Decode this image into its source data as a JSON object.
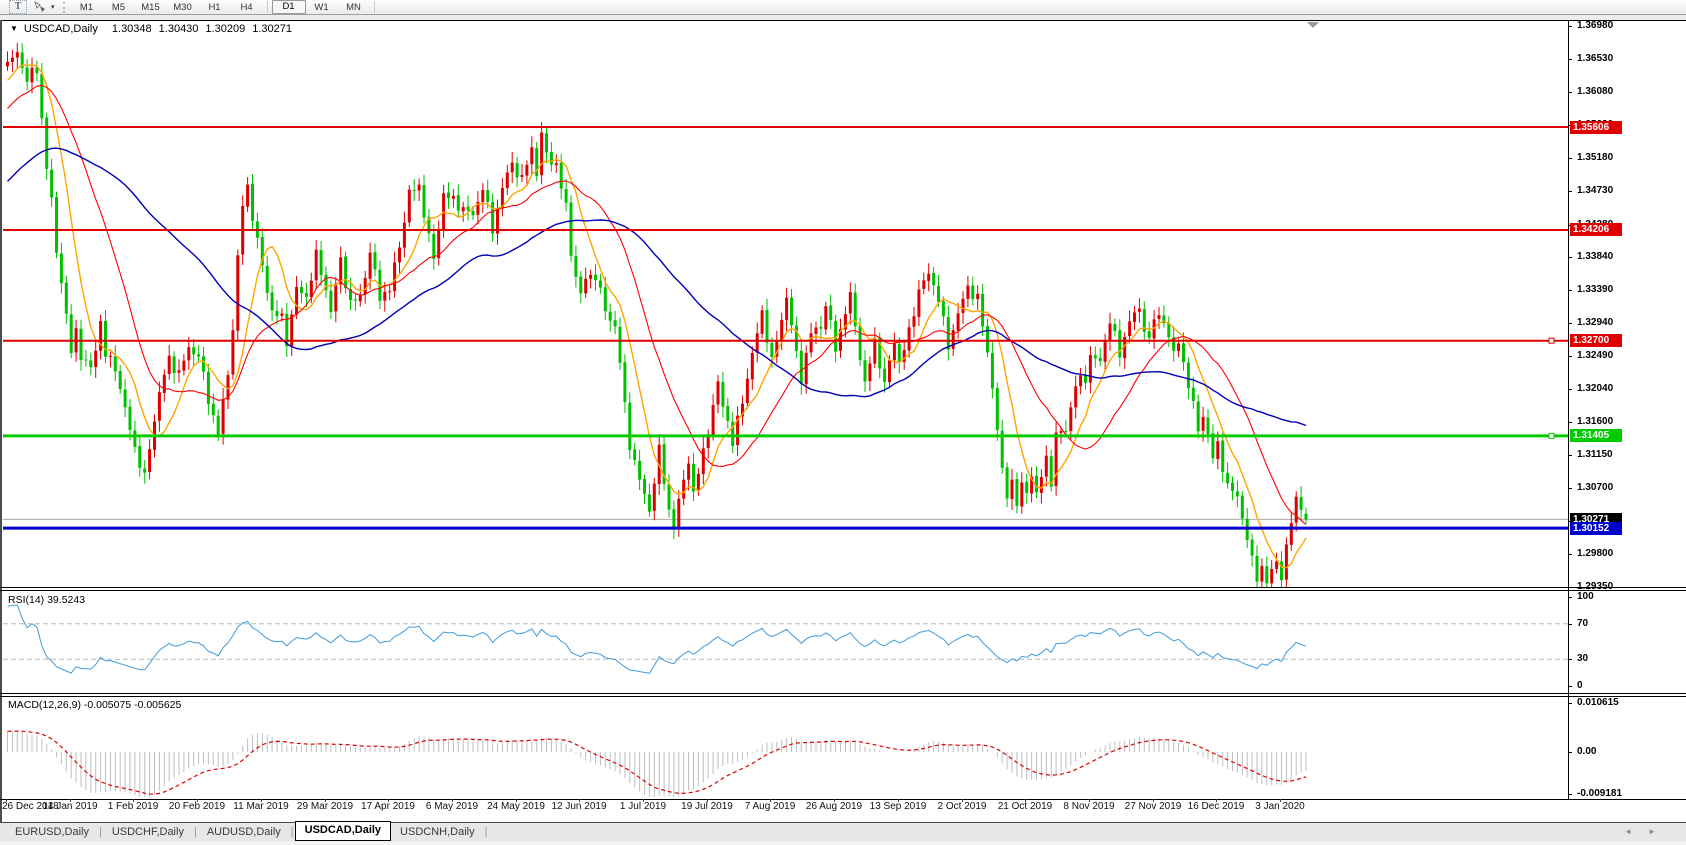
{
  "toolbar": {
    "text_tool_label": "T",
    "timeframes": [
      "M1",
      "M5",
      "M15",
      "M30",
      "H1",
      "H4",
      "D1",
      "W1",
      "MN"
    ],
    "active_timeframe": "D1"
  },
  "chart": {
    "symbol_title": "USDCAD,Daily",
    "ohlc": {
      "open": "1.30348",
      "high": "1.30430",
      "low": "1.30209",
      "close": "1.30271"
    },
    "price_axis_labels": [
      "1.36980",
      "1.36530",
      "1.36080",
      "1.35630",
      "1.35180",
      "1.34730",
      "1.34280",
      "1.33840",
      "1.33390",
      "1.32940",
      "1.32490",
      "1.32040",
      "1.31600",
      "1.31150",
      "1.30700",
      "1.30250",
      "1.29800",
      "1.29350"
    ],
    "current_price_badge": "1.30271"
  },
  "rsi_panel": {
    "label": "RSI(14) 39.5243",
    "axis_labels": [
      "100",
      "70",
      "30",
      "0"
    ]
  },
  "macd_panel": {
    "label": "MACD(12,26,9) -0.005075 -0.005625",
    "axis_labels": [
      "0.010615",
      "0.00",
      "-0.009181"
    ]
  },
  "date_axis": [
    "26 Dec 2018",
    "14 Jan 2019",
    "1 Feb 2019",
    "20 Feb 2019",
    "11 Mar 2019",
    "29 Mar 2019",
    "17 Apr 2019",
    "6 May 2019",
    "24 May 2019",
    "12 Jun 2019",
    "1 Jul 2019",
    "19 Jul 2019",
    "7 Aug 2019",
    "26 Aug 2019",
    "13 Sep 2019",
    "2 Oct 2019",
    "21 Oct 2019",
    "8 Nov 2019",
    "27 Nov 2019",
    "16 Dec 2019",
    "3 Jan 2020"
  ],
  "tab_bar": {
    "tabs": [
      "EURUSD,Daily",
      "USDCHF,Daily",
      "AUDUSD,Daily",
      "USDCAD,Daily",
      "USDCNH,Daily"
    ],
    "active_tab": "USDCAD,Daily",
    "scroll_left": "◄",
    "scroll_right": "►"
  },
  "colors": {
    "bull_candle": "#dd0000",
    "bear_candle": "#00c000",
    "ma_fast": "#ffa500",
    "ma_mid": "#ff0000",
    "ma_slow": "#0000b8",
    "rsi_line": "#3e9bdc",
    "macd_histogram": "#bfbfbf",
    "macd_signal": "#e00000",
    "current_price_line": "#aaaaaa",
    "current_price_badge_bg": "#000000"
  },
  "chart_data": {
    "type": "candlestick",
    "symbol": "USDCAD",
    "timeframe": "Daily",
    "bars": 266,
    "bars_per_date_label": 13,
    "ylim": [
      1.29337,
      1.37048
    ],
    "last_candle": {
      "open": 1.30348,
      "high": 1.3043,
      "low": 1.30209,
      "close": 1.30271
    },
    "current_price": 1.30271,
    "horizontal_levels": [
      {
        "value": 1.35606,
        "label": "1.35606",
        "color": "#e00000",
        "width": 2,
        "handle": false
      },
      {
        "value": 1.34206,
        "label": "1.34206",
        "color": "#e00000",
        "width": 2,
        "handle": false
      },
      {
        "value": 1.327,
        "label": "1.32700",
        "color": "#e00000",
        "width": 2,
        "handle": true
      },
      {
        "value": 1.31405,
        "label": "1.31405",
        "color": "#00cc00",
        "width": 3,
        "handle": true
      },
      {
        "value": 1.30152,
        "label": "1.30152",
        "color": "#0000cc",
        "width": 3,
        "handle": false
      }
    ],
    "moving_averages": [
      {
        "period": 8,
        "color": "#ffa500",
        "width": 1.4
      },
      {
        "period": 20,
        "color": "#ff0000",
        "width": 1.1
      },
      {
        "period": 50,
        "color": "#0000b8",
        "width": 1.4
      }
    ],
    "rsi": {
      "period": 14,
      "last_value": 39.5243,
      "levels": [
        70,
        30
      ],
      "range": [
        0,
        100
      ]
    },
    "macd": {
      "fast": 12,
      "slow": 26,
      "signal": 9,
      "last_macd": -0.005075,
      "last_signal": -0.005625,
      "axis_range": [
        -0.009181,
        0.010615
      ]
    },
    "close_waypoints": [
      [
        0,
        1.3645
      ],
      [
        2,
        1.3662
      ],
      [
        4,
        1.3625
      ],
      [
        6,
        1.364
      ],
      [
        7,
        1.3572
      ],
      [
        8,
        1.3505
      ],
      [
        9,
        1.346
      ],
      [
        10,
        1.339
      ],
      [
        11,
        1.3355
      ],
      [
        12,
        1.33
      ],
      [
        13,
        1.3255
      ],
      [
        14,
        1.3285
      ],
      [
        15,
        1.325
      ],
      [
        17,
        1.323
      ],
      [
        19,
        1.3295
      ],
      [
        20,
        1.325
      ],
      [
        22,
        1.3235
      ],
      [
        24,
        1.3175
      ],
      [
        26,
        1.3125
      ],
      [
        28,
        1.3082
      ],
      [
        29,
        1.3125
      ],
      [
        31,
        1.32
      ],
      [
        33,
        1.3245
      ],
      [
        35,
        1.3225
      ],
      [
        37,
        1.326
      ],
      [
        39,
        1.325
      ],
      [
        41,
        1.319
      ],
      [
        43,
        1.3145
      ],
      [
        45,
        1.3225
      ],
      [
        46,
        1.329
      ],
      [
        47,
        1.338
      ],
      [
        48,
        1.3455
      ],
      [
        49,
        1.348
      ],
      [
        50,
        1.344
      ],
      [
        52,
        1.337
      ],
      [
        54,
        1.331
      ],
      [
        56,
        1.33
      ],
      [
        57,
        1.327
      ],
      [
        59,
        1.334
      ],
      [
        61,
        1.333
      ],
      [
        63,
        1.3385
      ],
      [
        65,
        1.334
      ],
      [
        66,
        1.331
      ],
      [
        68,
        1.338
      ],
      [
        70,
        1.332
      ],
      [
        72,
        1.333
      ],
      [
        74,
        1.339
      ],
      [
        76,
        1.333
      ],
      [
        78,
        1.334
      ],
      [
        80,
        1.34
      ],
      [
        82,
        1.347
      ],
      [
        84,
        1.348
      ],
      [
        86,
        1.341
      ],
      [
        87,
        1.338
      ],
      [
        89,
        1.347
      ],
      [
        91,
        1.346
      ],
      [
        93,
        1.345
      ],
      [
        95,
        1.344
      ],
      [
        97,
        1.348
      ],
      [
        99,
        1.342
      ],
      [
        101,
        1.348
      ],
      [
        103,
        1.351
      ],
      [
        105,
        1.349
      ],
      [
        107,
        1.353
      ],
      [
        108,
        1.35
      ],
      [
        109,
        1.3552
      ],
      [
        110,
        1.352
      ],
      [
        112,
        1.351
      ],
      [
        114,
        1.345
      ],
      [
        115,
        1.339
      ],
      [
        117,
        1.333
      ],
      [
        118,
        1.3355
      ],
      [
        120,
        1.336
      ],
      [
        122,
        1.331
      ],
      [
        124,
        1.329
      ],
      [
        125,
        1.324
      ],
      [
        126,
        1.318
      ],
      [
        127,
        1.313
      ],
      [
        129,
        1.308
      ],
      [
        130,
        1.306
      ],
      [
        131,
        1.304
      ],
      [
        133,
        1.312
      ],
      [
        135,
        1.304
      ],
      [
        136,
        1.3018
      ],
      [
        137,
        1.305
      ],
      [
        139,
        1.311
      ],
      [
        140,
        1.306
      ],
      [
        142,
        1.312
      ],
      [
        144,
        1.318
      ],
      [
        145,
        1.321
      ],
      [
        147,
        1.316
      ],
      [
        148,
        1.313
      ],
      [
        150,
        1.319
      ],
      [
        152,
        1.325
      ],
      [
        154,
        1.331
      ],
      [
        156,
        1.324
      ],
      [
        158,
        1.33
      ],
      [
        159,
        1.333
      ],
      [
        161,
        1.325
      ],
      [
        162,
        1.322
      ],
      [
        164,
        1.328
      ],
      [
        166,
        1.329
      ],
      [
        167,
        1.332
      ],
      [
        169,
        1.326
      ],
      [
        171,
        1.331
      ],
      [
        172,
        1.333
      ],
      [
        174,
        1.325
      ],
      [
        175,
        1.321
      ],
      [
        177,
        1.327
      ],
      [
        179,
        1.321
      ],
      [
        181,
        1.327
      ],
      [
        182,
        1.324
      ],
      [
        184,
        1.328
      ],
      [
        186,
        1.334
      ],
      [
        188,
        1.336
      ],
      [
        190,
        1.333
      ],
      [
        192,
        1.326
      ],
      [
        194,
        1.331
      ],
      [
        196,
        1.334
      ],
      [
        198,
        1.333
      ],
      [
        199,
        1.329
      ],
      [
        200,
        1.325
      ],
      [
        201,
        1.321
      ],
      [
        202,
        1.315
      ],
      [
        203,
        1.309
      ],
      [
        204,
        1.306
      ],
      [
        205,
        1.308
      ],
      [
        206,
        1.305
      ],
      [
        207,
        1.307
      ],
      [
        208,
        1.3065
      ],
      [
        209,
        1.309
      ],
      [
        210,
        1.306
      ],
      [
        212,
        1.311
      ],
      [
        213,
        1.308
      ],
      [
        214,
        1.314
      ],
      [
        216,
        1.315
      ],
      [
        218,
        1.321
      ],
      [
        220,
        1.322
      ],
      [
        221,
        1.325
      ],
      [
        223,
        1.324
      ],
      [
        225,
        1.33
      ],
      [
        227,
        1.325
      ],
      [
        229,
        1.33
      ],
      [
        231,
        1.331
      ],
      [
        233,
        1.327
      ],
      [
        234,
        1.33
      ],
      [
        236,
        1.33
      ],
      [
        238,
        1.325
      ],
      [
        239,
        1.327
      ],
      [
        241,
        1.321
      ],
      [
        243,
        1.315
      ],
      [
        244,
        1.317
      ],
      [
        246,
        1.311
      ],
      [
        247,
        1.313
      ],
      [
        249,
        1.307
      ],
      [
        251,
        1.306
      ],
      [
        252,
        1.303
      ],
      [
        253,
        1.3
      ],
      [
        254,
        1.297
      ],
      [
        255,
        1.295
      ],
      [
        256,
        1.2962
      ],
      [
        257,
        1.294
      ],
      [
        258,
        1.2956
      ],
      [
        259,
        1.2972
      ],
      [
        260,
        1.295
      ],
      [
        261,
        1.2985
      ],
      [
        262,
        1.3025
      ],
      [
        263,
        1.3058
      ],
      [
        264,
        1.304
      ],
      [
        265,
        1.30271
      ]
    ]
  }
}
